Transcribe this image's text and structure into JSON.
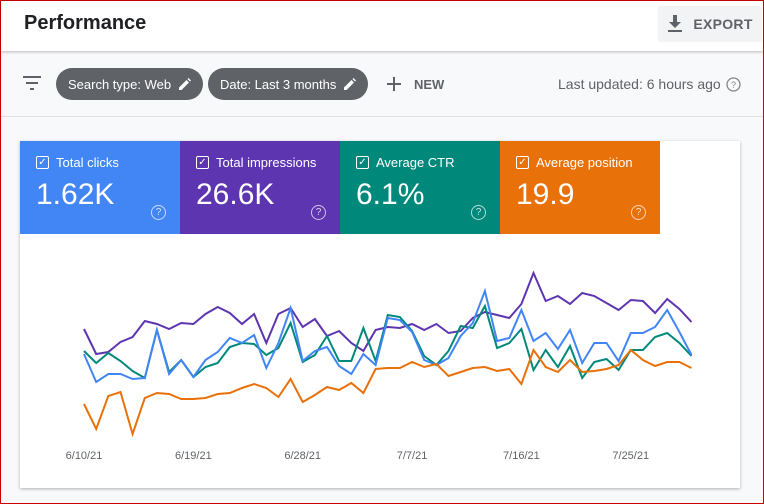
{
  "header": {
    "title": "Performance",
    "export_label": "EXPORT",
    "export_icon": "download-icon"
  },
  "filters": {
    "chips": [
      {
        "label": "Search type: Web",
        "icon": "pencil-icon"
      },
      {
        "label": "Date: Last 3 months",
        "icon": "pencil-icon"
      }
    ],
    "new_label": "NEW",
    "last_updated": "Last updated: 6 hours ago"
  },
  "metrics": [
    {
      "label": "Total clicks",
      "value": "1.62K",
      "color": "#4285f4",
      "checked": true
    },
    {
      "label": "Total impressions",
      "value": "26.6K",
      "color": "#5e35b1",
      "checked": true
    },
    {
      "label": "Average CTR",
      "value": "6.1%",
      "color": "#00897b",
      "checked": true
    },
    {
      "label": "Average position",
      "value": "19.9",
      "color": "#e8710a",
      "checked": true
    }
  ],
  "chart_data": {
    "type": "line",
    "note_scale": "relative (no y-axis shown)",
    "x_tick_labels": [
      "6/10/21",
      "6/19/21",
      "6/28/21",
      "7/7/21",
      "7/16/21",
      "7/25/21"
    ],
    "grid": false,
    "series": [
      {
        "name": "Total impressions",
        "color": "#5e35b1",
        "values": [
          112,
          87,
          89,
          99,
          104,
          120,
          117,
          112,
          118,
          117,
          127,
          134,
          128,
          117,
          127,
          98,
          127,
          133,
          114,
          122,
          105,
          110,
          98,
          90,
          111,
          114,
          113,
          117,
          111,
          117,
          108,
          110,
          123,
          129,
          126,
          123,
          137,
          168,
          140,
          145,
          137,
          148,
          145,
          138,
          131,
          141,
          140,
          128,
          142,
          132,
          119
        ]
      },
      {
        "name": "Average CTR",
        "color": "#00897b",
        "values": [
          90,
          78,
          88,
          80,
          70,
          63,
          111,
          69,
          81,
          64,
          74,
          78,
          94,
          98,
          97,
          86,
          93,
          118,
          79,
          86,
          105,
          80,
          80,
          113,
          80,
          126,
          124,
          110,
          85,
          76,
          90,
          115,
          113,
          135,
          93,
          98,
          112,
          71,
          91,
          74,
          95,
          63,
          79,
          82,
          71,
          91,
          91,
          104,
          108,
          98,
          85
        ]
      },
      {
        "name": "Total clicks",
        "color": "#4285f4",
        "values": [
          87,
          59,
          67,
          67,
          62,
          63,
          111,
          67,
          81,
          64,
          81,
          89,
          103,
          98,
          106,
          73,
          98,
          133,
          80,
          90,
          94,
          75,
          67,
          87,
          76,
          123,
          121,
          109,
          81,
          76,
          83,
          105,
          118,
          150,
          100,
          103,
          131,
          100,
          108,
          92,
          111,
          78,
          98,
          98,
          80,
          108,
          108,
          114,
          131,
          109,
          86
        ]
      },
      {
        "name": "Average position",
        "color": "#e8710a",
        "values": [
          37,
          12,
          45,
          49,
          7,
          43,
          48,
          47,
          42,
          42,
          43,
          47,
          48,
          53,
          57,
          53,
          44,
          62,
          39,
          46,
          54,
          51,
          58,
          48,
          72,
          73,
          73,
          79,
          74,
          77,
          65,
          69,
          73,
          74,
          70,
          72,
          57,
          91,
          74,
          69,
          81,
          69,
          70,
          72,
          76,
          91,
          81,
          75,
          79,
          79,
          73
        ]
      }
    ]
  }
}
